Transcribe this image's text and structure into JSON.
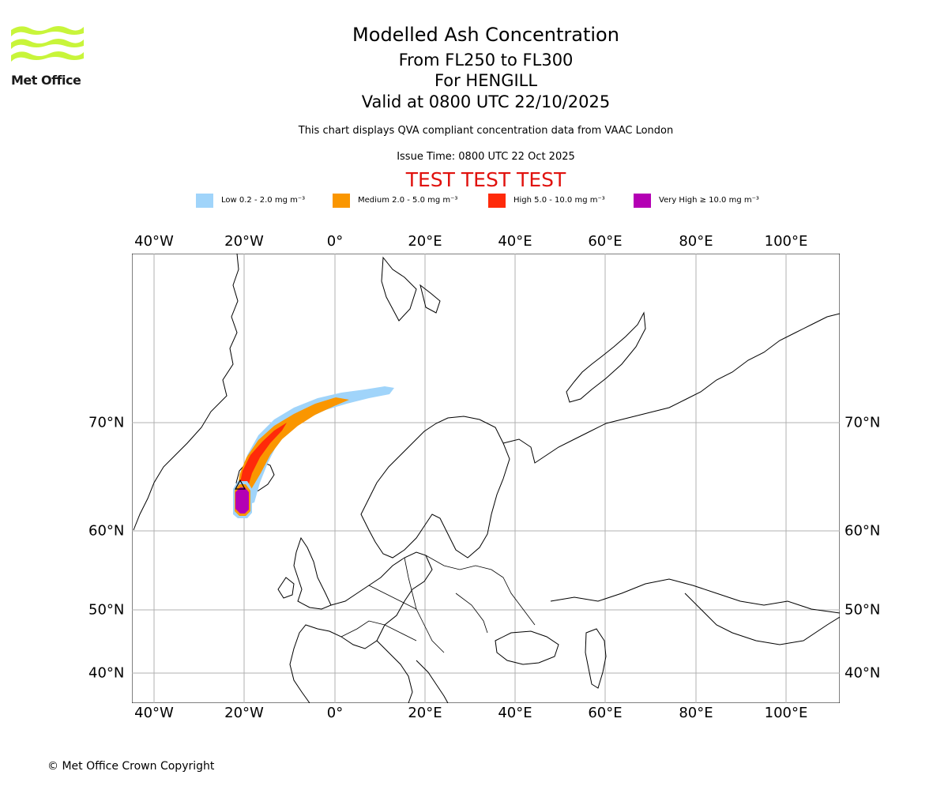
{
  "logo": {
    "text": "Met Office",
    "colors": {
      "waves": "#c8f53a"
    }
  },
  "header": {
    "title": "Modelled Ash Concentration",
    "level": "From FL250 to FL300",
    "volcano": "For HENGILL",
    "valid": "Valid at 0800 UTC 22/10/2025",
    "disclaimer": "This chart displays QVA compliant concentration data from VAAC London",
    "issue_time": "Issue Time: 0800 UTC 22 Oct 2025",
    "test_banner": "TEST TEST TEST"
  },
  "legend": [
    {
      "label": "Low 0.2 - 2.0 mg m⁻³",
      "color": "#a0d4fa"
    },
    {
      "label": "Medium 2.0 - 5.0 mg m⁻³",
      "color": "#fa9600"
    },
    {
      "label": "High 5.0 - 10.0 mg m⁻³",
      "color": "#ff2a0a"
    },
    {
      "label": "Very High  ≥  10.0 mg m⁻³",
      "color": "#b400b4"
    }
  ],
  "axes": {
    "lon_ticks": [
      "40°W",
      "20°W",
      "0°",
      "20°E",
      "40°E",
      "60°E",
      "80°E",
      "100°E"
    ],
    "lat_ticks": [
      "70°N",
      "60°N",
      "50°N",
      "40°N"
    ]
  },
  "footer": {
    "copyright": "© Met Office Crown Copyright"
  }
}
